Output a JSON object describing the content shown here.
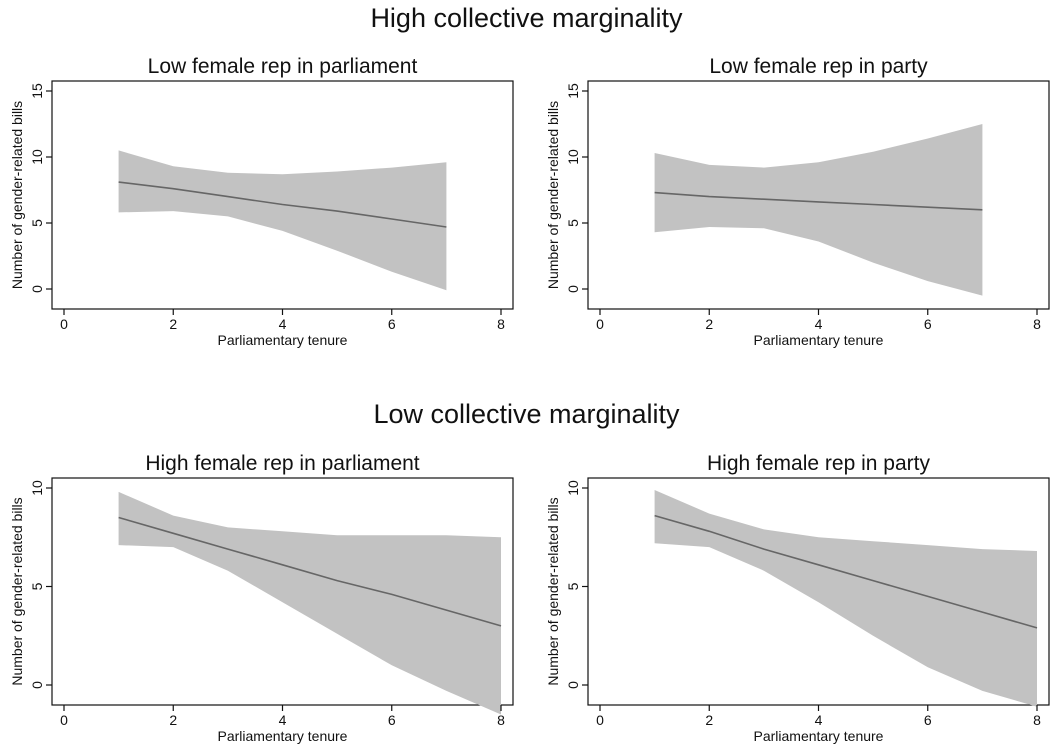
{
  "sections": [
    {
      "title": "High collective marginality"
    },
    {
      "title": "Low collective marginality"
    }
  ],
  "chart_data": [
    {
      "type": "line",
      "title": "Low female rep in parliament",
      "xlabel": "Parliamentary tenure",
      "ylabel": "Number of gender-related bills",
      "xlim": [
        0,
        8
      ],
      "ylim": [
        0,
        15
      ],
      "xticks": [
        0,
        2,
        4,
        6,
        8
      ],
      "yticks": [
        0,
        5,
        10,
        15
      ],
      "series": [
        {
          "x": [
            1,
            2,
            3,
            4,
            5,
            6,
            7
          ],
          "y": [
            8.1,
            7.6,
            7.0,
            6.4,
            5.9,
            5.3,
            4.7
          ],
          "lower": [
            5.8,
            5.9,
            5.5,
            4.4,
            2.9,
            1.3,
            -0.1
          ],
          "upper": [
            10.5,
            9.3,
            8.8,
            8.7,
            8.9,
            9.2,
            9.6
          ]
        }
      ],
      "grid": false,
      "band_color": "#c2c2c2",
      "line_color": "#666666"
    },
    {
      "type": "line",
      "title": "Low female rep in party",
      "xlabel": "Parliamentary tenure",
      "ylabel": "Number of gender-related bills",
      "xlim": [
        0,
        8
      ],
      "ylim": [
        0,
        15
      ],
      "xticks": [
        0,
        2,
        4,
        6,
        8
      ],
      "yticks": [
        0,
        5,
        10,
        15
      ],
      "series": [
        {
          "x": [
            1,
            2,
            3,
            4,
            5,
            6,
            7
          ],
          "y": [
            7.3,
            7.0,
            6.8,
            6.6,
            6.4,
            6.2,
            6.0
          ],
          "lower": [
            4.3,
            4.7,
            4.6,
            3.6,
            2.0,
            0.6,
            -0.5
          ],
          "upper": [
            10.3,
            9.4,
            9.2,
            9.6,
            10.4,
            11.4,
            12.5
          ]
        }
      ],
      "grid": false,
      "band_color": "#c2c2c2",
      "line_color": "#666666"
    },
    {
      "type": "line",
      "title": "High female rep in parliament",
      "xlabel": "Parliamentary tenure",
      "ylabel": "Number of gender-related bills",
      "xlim": [
        0,
        8
      ],
      "ylim": [
        -1,
        10
      ],
      "xticks": [
        0,
        2,
        4,
        6,
        8
      ],
      "yticks": [
        0,
        5,
        10
      ],
      "series": [
        {
          "x": [
            1,
            2,
            3,
            4,
            5,
            6,
            7,
            8
          ],
          "y": [
            8.5,
            7.7,
            6.9,
            6.1,
            5.3,
            4.6,
            3.8,
            3.0
          ],
          "lower": [
            7.1,
            7.0,
            5.8,
            4.2,
            2.6,
            1.0,
            -0.3,
            -1.5
          ],
          "upper": [
            9.8,
            8.6,
            8.0,
            7.8,
            7.6,
            7.6,
            7.6,
            7.5
          ]
        }
      ],
      "grid": false,
      "band_color": "#c2c2c2",
      "line_color": "#666666"
    },
    {
      "type": "line",
      "title": "High female rep in party",
      "xlabel": "Parliamentary tenure",
      "ylabel": "Number of gender-related bills",
      "xlim": [
        0,
        8
      ],
      "ylim": [
        -1,
        10
      ],
      "xticks": [
        0,
        2,
        4,
        6,
        8
      ],
      "yticks": [
        0,
        5,
        10
      ],
      "series": [
        {
          "x": [
            1,
            2,
            3,
            4,
            5,
            6,
            7,
            8
          ],
          "y": [
            8.6,
            7.8,
            6.9,
            6.1,
            5.3,
            4.5,
            3.7,
            2.9
          ],
          "lower": [
            7.2,
            7.0,
            5.8,
            4.2,
            2.5,
            0.9,
            -0.3,
            -1.1
          ],
          "upper": [
            9.9,
            8.7,
            7.9,
            7.5,
            7.3,
            7.1,
            6.9,
            6.8
          ]
        }
      ],
      "grid": false,
      "band_color": "#c2c2c2",
      "line_color": "#666666"
    }
  ]
}
